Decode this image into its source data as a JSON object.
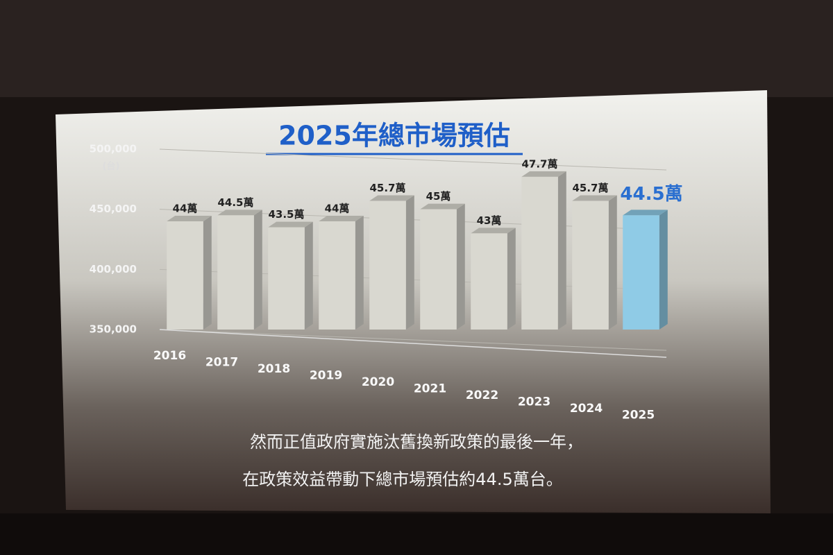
{
  "chart_data": {
    "type": "bar3d",
    "title": "2025年總市場預估",
    "y_unit": "(台)",
    "categories": [
      "2016",
      "2017",
      "2018",
      "2019",
      "2020",
      "2021",
      "2022",
      "2023",
      "2024",
      "2025"
    ],
    "values": [
      440000,
      445000,
      435000,
      440000,
      457000,
      450000,
      430000,
      477000,
      457000,
      445000
    ],
    "value_labels": [
      "44萬",
      "44.5萬",
      "43.5萬",
      "44萬",
      "45.7萬",
      "45萬",
      "43萬",
      "47.7萬",
      "45.7萬",
      "44.5萬"
    ],
    "colors": [
      "#d9d8d0",
      "#d9d8d0",
      "#d9d8d0",
      "#d9d8d0",
      "#d9d8d0",
      "#d9d8d0",
      "#d9d8d0",
      "#d9d8d0",
      "#d9d8d0",
      "#8fcbe6"
    ],
    "ylim": [
      350000,
      500000
    ],
    "yticks": [
      {
        "value": 350000,
        "label": "350,000"
      },
      {
        "value": 400000,
        "label": "400,000"
      },
      {
        "value": 450000,
        "label": "450,000"
      },
      {
        "value": 500000,
        "label": "500,000"
      }
    ],
    "grid": true,
    "notes": [
      "然而正值政府實施汰舊換新政策的最後一年，",
      "在政策效益帶動下總市場預估約44.5萬台。"
    ]
  }
}
